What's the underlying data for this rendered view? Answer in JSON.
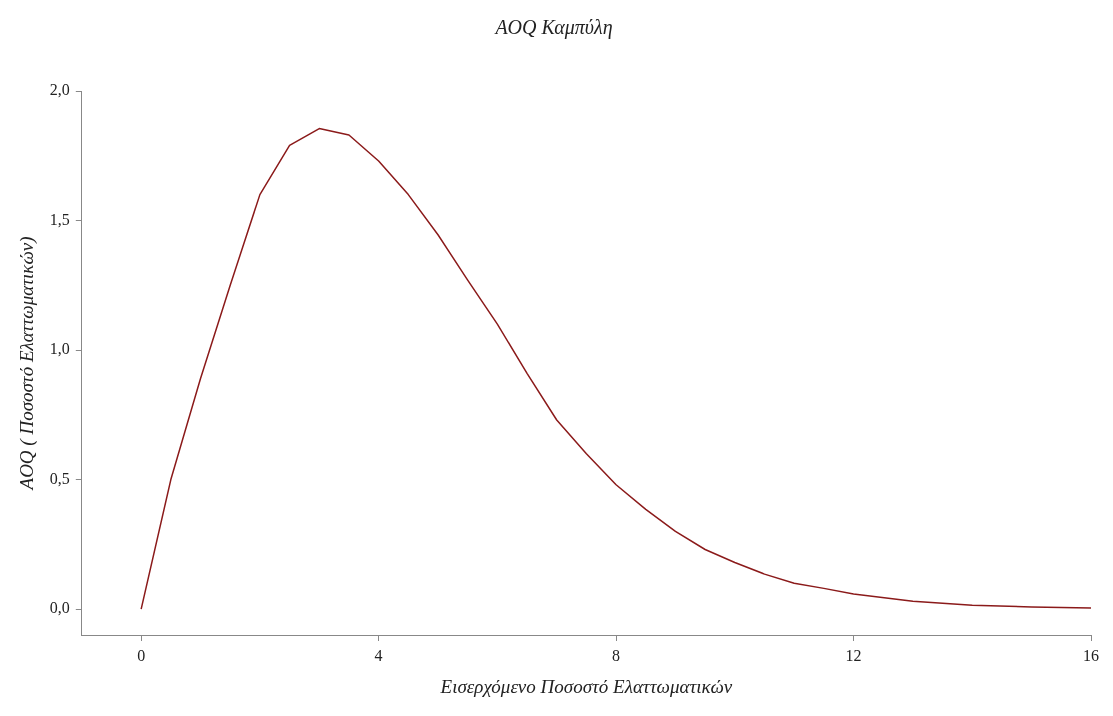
{
  "chart_data": {
    "type": "line",
    "title": "AOQ Καμπύλη",
    "xlabel": "Εισερχόμενο Ποσοστό Ελαττωματικών",
    "ylabel": "AOQ ( Ποσοστό Ελαττωματικών)",
    "x": [
      0,
      0.5,
      1,
      1.5,
      2,
      2.5,
      3,
      3.5,
      4,
      4.5,
      5,
      5.5,
      6,
      6.5,
      7,
      7.5,
      8,
      8.5,
      9,
      9.5,
      10,
      10.5,
      11,
      11.5,
      12,
      13,
      14,
      15,
      16
    ],
    "series": [
      {
        "color": "#8b1a1a",
        "values": [
          0,
          0.5,
          0.89,
          1.25,
          1.6,
          1.79,
          1.855,
          1.83,
          1.73,
          1.6,
          1.445,
          1.27,
          1.1,
          0.91,
          0.73,
          0.6,
          0.48,
          0.385,
          0.3,
          0.23,
          0.18,
          0.135,
          0.1,
          0.08,
          0.058,
          0.03,
          0.015,
          0.008,
          0.004
        ]
      }
    ],
    "xlim": [
      -1,
      16
    ],
    "xticks": [
      0,
      4,
      8,
      12,
      16
    ],
    "ylim": [
      -0.1,
      2
    ],
    "yticks": [
      {
        "value": 0,
        "label": "0,0"
      },
      {
        "value": 0.5,
        "label": "0,5"
      },
      {
        "value": 1,
        "label": "1,0"
      },
      {
        "value": 1.5,
        "label": "1,5"
      },
      {
        "value": 2,
        "label": "2,0"
      }
    ],
    "grid": false,
    "legend": false,
    "marker": "none",
    "line_style": "solid"
  }
}
